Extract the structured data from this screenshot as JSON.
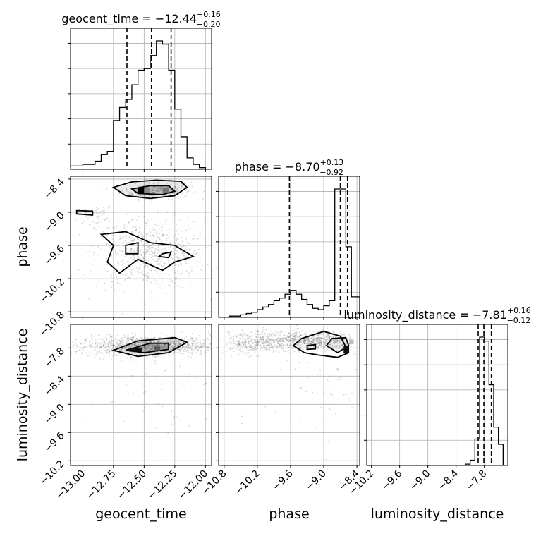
{
  "chart_data": {
    "type": "corner",
    "parameters": [
      "geocent_time",
      "phase",
      "luminosity_distance"
    ],
    "titles": {
      "geocent_time": "geocent_time = −12.44",
      "phase": "phase = −8.70",
      "luminosity_distance": "luminosity_distance = −7.81"
    },
    "title_errors": {
      "geocent_time": {
        "plus": "+0.16",
        "minus": "−0.20"
      },
      "phase": {
        "plus": "+0.13",
        "minus": "−0.92"
      },
      "luminosity_distance": {
        "plus": "+0.16",
        "minus": "−0.12"
      }
    },
    "ranges": {
      "geocent_time": [
        -13.1,
        -11.95
      ],
      "phase": [
        -10.9,
        -8.35
      ],
      "luminosity_distance": [
        -10.3,
        -7.3
      ]
    },
    "ticks": {
      "geocent_time": [
        -13.0,
        -12.75,
        -12.5,
        -12.25,
        -12.0
      ],
      "phase": [
        -10.8,
        -10.2,
        -9.6,
        -9.0,
        -8.4
      ],
      "luminosity_distance": [
        -10.2,
        -9.6,
        -9.0,
        -8.4,
        -7.8
      ]
    },
    "tick_labels": {
      "geocent_time": [
        "−13.00",
        "−12.75",
        "−12.50",
        "−12.25",
        "−12.00"
      ],
      "phase": [
        "−10.8",
        "−10.2",
        "−9.6",
        "−9.0",
        "−8.4"
      ],
      "luminosity_distance": [
        "−10.2",
        "−9.6",
        "−9.0",
        "−8.4",
        "−7.8"
      ]
    },
    "quantiles": {
      "geocent_time": [
        -12.64,
        -12.44,
        -12.28
      ],
      "phase": [
        -9.62,
        -8.7,
        -8.57
      ],
      "luminosity_distance": [
        -7.93,
        -7.81,
        -7.65
      ]
    },
    "histograms": {
      "geocent_time": {
        "edges": [
          -13.1,
          -13.0,
          -12.95,
          -12.9,
          -12.85,
          -12.8,
          -12.75,
          -12.7,
          -12.65,
          -12.6,
          -12.55,
          -12.5,
          -12.45,
          -12.4,
          -12.35,
          -12.3,
          -12.25,
          -12.2,
          -12.15,
          -12.1,
          -12.05,
          -12.0
        ],
        "counts": [
          2,
          3,
          3,
          5,
          9,
          11,
          30,
          38,
          43,
          52,
          61,
          62,
          70,
          79,
          77,
          61,
          37,
          20,
          7,
          3,
          1
        ]
      },
      "phase": {
        "edges": [
          -10.9,
          -10.8,
          -10.7,
          -10.6,
          -10.5,
          -10.4,
          -10.3,
          -10.2,
          -10.1,
          -10.0,
          -9.9,
          -9.8,
          -9.7,
          -9.6,
          -9.5,
          -9.4,
          -9.3,
          -9.2,
          -9.1,
          -9.0,
          -8.9,
          -8.8,
          -8.7,
          -8.6,
          -8.5,
          -8.4,
          -8.35
        ],
        "counts": [
          0,
          0,
          1,
          1,
          2,
          3,
          4,
          6,
          8,
          10,
          13,
          15,
          18,
          21,
          18,
          14,
          10,
          7,
          6,
          9,
          13,
          100,
          100,
          55,
          16,
          16
        ]
      },
      "luminosity_distance": {
        "edges": [
          -10.3,
          -8.2,
          -8.1,
          -8.0,
          -7.9,
          -7.8,
          -7.7,
          -7.6,
          -7.5,
          -7.4
        ],
        "counts": [
          0,
          1,
          4,
          20,
          97,
          94,
          61,
          29,
          16
        ]
      }
    },
    "grid": true,
    "legend": "none"
  }
}
